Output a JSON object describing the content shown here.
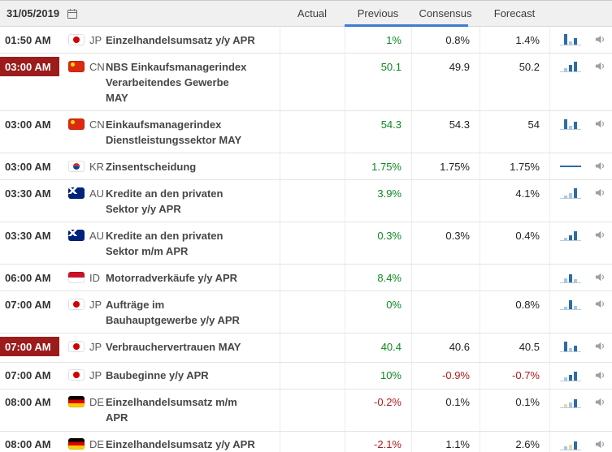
{
  "header": {
    "date": "31/05/2019",
    "columns": {
      "actual": "Actual",
      "previous": "Previous",
      "consensus": "Consensus",
      "forecast": "Forecast"
    }
  },
  "colors": {
    "positive": "#0a8a1f",
    "negative": "#b11a1a",
    "neutral": "#222222",
    "highlight_bg": "#9c1b1b",
    "accent": "#3a7bd5",
    "spark": {
      "b": "#2e6da4",
      "l": "#a9c7e4",
      "y": "#e8d9a0"
    }
  },
  "rows": [
    {
      "time": "01:50 AM",
      "highlight": false,
      "country": "JP",
      "name": "Einzelhandelsumsatz y/y APR",
      "actual": "",
      "previous": "1%",
      "previous_tone": "pos",
      "consensus": "0.8%",
      "consensus_tone": "neu",
      "forecast": "1.4%",
      "forecast_tone": "neu",
      "spark": {
        "type": "bars",
        "bars": [
          [
            13,
            "b"
          ],
          [
            4,
            "l"
          ],
          [
            8,
            "b"
          ]
        ]
      }
    },
    {
      "time": "03:00 AM",
      "highlight": true,
      "country": "CN",
      "name": "NBS Einkaufsmanagerindex\nVerarbeitendes Gewerbe\nMAY",
      "actual": "",
      "previous": "50.1",
      "previous_tone": "pos",
      "consensus": "49.9",
      "consensus_tone": "neu",
      "forecast": "50.2",
      "forecast_tone": "neu",
      "spark": {
        "type": "bars",
        "bars": [
          [
            4,
            "l"
          ],
          [
            8,
            "b"
          ],
          [
            12,
            "b"
          ]
        ]
      }
    },
    {
      "time": "03:00 AM",
      "highlight": false,
      "country": "CN",
      "name": "Einkaufsmanagerindex\nDienstleistungssektor MAY",
      "actual": "",
      "previous": "54.3",
      "previous_tone": "pos",
      "consensus": "54.3",
      "consensus_tone": "neu",
      "forecast": "54",
      "forecast_tone": "neu",
      "spark": {
        "type": "bars",
        "bars": [
          [
            12,
            "b"
          ],
          [
            4,
            "l"
          ],
          [
            9,
            "b"
          ]
        ]
      }
    },
    {
      "time": "03:00 AM",
      "highlight": false,
      "country": "KR",
      "name": "Zinsentscheidung",
      "actual": "",
      "previous": "1.75%",
      "previous_tone": "pos",
      "consensus": "1.75%",
      "consensus_tone": "neu",
      "forecast": "1.75%",
      "forecast_tone": "neu",
      "spark": {
        "type": "line"
      }
    },
    {
      "time": "03:30 AM",
      "highlight": false,
      "country": "AU",
      "name": "Kredite an den privaten\nSektor y/y APR",
      "actual": "",
      "previous": "3.9%",
      "previous_tone": "pos",
      "consensus": "",
      "consensus_tone": "neu",
      "forecast": "4.1%",
      "forecast_tone": "neu",
      "spark": {
        "type": "bars",
        "bars": [
          [
            3,
            "l"
          ],
          [
            6,
            "l"
          ],
          [
            12,
            "b"
          ]
        ]
      }
    },
    {
      "time": "03:30 AM",
      "highlight": false,
      "country": "AU",
      "name": "Kredite an den privaten\nSektor m/m APR",
      "actual": "",
      "previous": "0.3%",
      "previous_tone": "pos",
      "consensus": "0.3%",
      "consensus_tone": "neu",
      "forecast": "0.4%",
      "forecast_tone": "neu",
      "spark": {
        "type": "bars",
        "bars": [
          [
            3,
            "l"
          ],
          [
            6,
            "b"
          ],
          [
            11,
            "b"
          ]
        ]
      }
    },
    {
      "time": "06:00 AM",
      "highlight": false,
      "country": "ID",
      "name": "Motorradverkäufe y/y APR",
      "actual": "",
      "previous": "8.4%",
      "previous_tone": "pos",
      "consensus": "",
      "consensus_tone": "neu",
      "forecast": "",
      "forecast_tone": "neu",
      "spark": {
        "type": "bars",
        "bars": [
          [
            5,
            "l"
          ],
          [
            10,
            "b"
          ],
          [
            4,
            "l"
          ]
        ]
      }
    },
    {
      "time": "07:00 AM",
      "highlight": false,
      "country": "JP",
      "name": "Aufträge im\nBauhauptgewerbe y/y APR",
      "actual": "",
      "previous": "0%",
      "previous_tone": "pos",
      "consensus": "",
      "consensus_tone": "neu",
      "forecast": "0.8%",
      "forecast_tone": "neu",
      "spark": {
        "type": "bars",
        "bars": [
          [
            3,
            "l"
          ],
          [
            11,
            "b"
          ],
          [
            4,
            "l"
          ]
        ]
      }
    },
    {
      "time": "07:00 AM",
      "highlight": true,
      "country": "JP",
      "name": "Verbrauchervertrauen MAY",
      "actual": "",
      "previous": "40.4",
      "previous_tone": "pos",
      "consensus": "40.6",
      "consensus_tone": "neu",
      "forecast": "40.5",
      "forecast_tone": "neu",
      "spark": {
        "type": "bars",
        "bars": [
          [
            12,
            "b"
          ],
          [
            4,
            "l"
          ],
          [
            7,
            "b"
          ]
        ]
      }
    },
    {
      "time": "07:00 AM",
      "highlight": false,
      "country": "JP",
      "name": "Baubeginne y/y APR",
      "actual": "",
      "previous": "10%",
      "previous_tone": "pos",
      "consensus": "-0.9%",
      "consensus_tone": "neg",
      "forecast": "-0.7%",
      "forecast_tone": "neg",
      "spark": {
        "type": "bars",
        "bars": [
          [
            4,
            "l"
          ],
          [
            7,
            "b"
          ],
          [
            11,
            "b"
          ]
        ]
      }
    },
    {
      "time": "08:00 AM",
      "highlight": false,
      "country": "DE",
      "name": "Einzelhandelsumsatz m/m\nAPR",
      "actual": "",
      "previous": "-0.2%",
      "previous_tone": "neg",
      "consensus": "0.1%",
      "consensus_tone": "neu",
      "forecast": "0.1%",
      "forecast_tone": "neu",
      "spark": {
        "type": "bars",
        "bars": [
          [
            4,
            "y"
          ],
          [
            6,
            "l"
          ],
          [
            10,
            "b"
          ]
        ]
      }
    },
    {
      "time": "08:00 AM",
      "highlight": false,
      "country": "DE",
      "name": "Einzelhandelsumsatz y/y APR",
      "actual": "",
      "previous": "-2.1%",
      "previous_tone": "neg",
      "consensus": "1.1%",
      "consensus_tone": "neu",
      "forecast": "2.6%",
      "forecast_tone": "neu",
      "spark": {
        "type": "bars",
        "bars": [
          [
            4,
            "l"
          ],
          [
            6,
            "y"
          ],
          [
            10,
            "b"
          ]
        ]
      }
    }
  ]
}
